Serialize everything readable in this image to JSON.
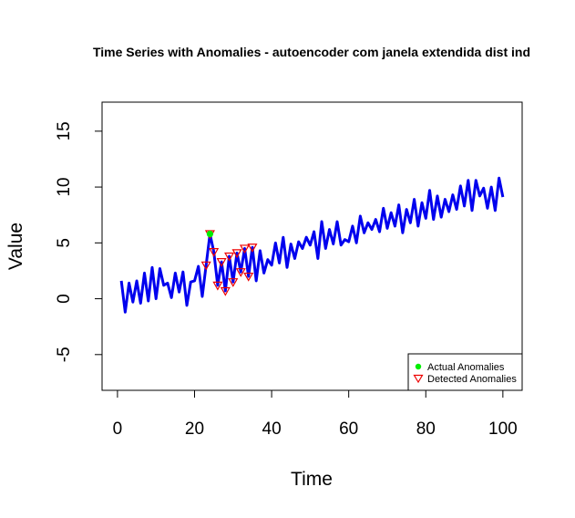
{
  "chart_data": {
    "type": "line",
    "title": "Time Series with Anomalies - autoencoder com janela extendida dist ind",
    "xlabel": "Time",
    "ylabel": "Value",
    "xlim": [
      -4,
      105
    ],
    "ylim": [
      -8.2,
      17.6
    ],
    "xticks": [
      0,
      20,
      40,
      60,
      80,
      100
    ],
    "yticks": [
      -5,
      0,
      5,
      10,
      15
    ],
    "grid": false,
    "legend_position": "bottom-right",
    "colors": {
      "series": "#0000ee",
      "actual": "#00ee00",
      "detected": "#ee0000",
      "axis": "#000000"
    },
    "series": [
      {
        "x": [
          1,
          2,
          3,
          4,
          5,
          6,
          7,
          8,
          9,
          10,
          11,
          12,
          13,
          14,
          15,
          16,
          17,
          18,
          19,
          20,
          21,
          22,
          23,
          24,
          25,
          26,
          27,
          28,
          29,
          30,
          31,
          32,
          33,
          34,
          35,
          36,
          37,
          38,
          39,
          40,
          41,
          42,
          43,
          44,
          45,
          46,
          47,
          48,
          49,
          50,
          51,
          52,
          53,
          54,
          55,
          56,
          57,
          58,
          59,
          60,
          61,
          62,
          63,
          64,
          65,
          66,
          67,
          68,
          69,
          70,
          71,
          72,
          73,
          74,
          75,
          76,
          77,
          78,
          79,
          80,
          81,
          82,
          83,
          84,
          85,
          86,
          87,
          88,
          89,
          90,
          91,
          92,
          93,
          94,
          95,
          96,
          97,
          98,
          99,
          100
        ],
        "values": [
          1.6,
          -1.2,
          1.4,
          -0.3,
          1.6,
          -0.4,
          2.3,
          -0.2,
          2.8,
          0.0,
          2.7,
          1.2,
          1.4,
          0.1,
          2.3,
          0.6,
          2.4,
          -0.6,
          1.5,
          1.6,
          2.9,
          0.2,
          3.0,
          5.8,
          4.2,
          1.2,
          3.3,
          0.7,
          3.8,
          1.5,
          4.1,
          2.4,
          4.5,
          2.0,
          4.6,
          1.6,
          4.3,
          2.3,
          3.5,
          3.0,
          5.0,
          3.2,
          5.5,
          2.8,
          4.9,
          3.6,
          5.1,
          4.5,
          5.5,
          4.8,
          6.0,
          3.6,
          6.9,
          4.5,
          6.2,
          4.9,
          6.9,
          4.8,
          5.3,
          5.1,
          6.5,
          5.0,
          7.4,
          5.9,
          6.8,
          6.2,
          7.1,
          6.0,
          8.1,
          6.3,
          7.7,
          6.5,
          8.4,
          5.9,
          8.0,
          6.8,
          8.9,
          6.5,
          8.6,
          7.2,
          9.7,
          7.1,
          9.2,
          7.3,
          8.9,
          7.8,
          9.3,
          8.0,
          10.1,
          8.3,
          10.6,
          7.9,
          10.6,
          9.2,
          9.9,
          8.1,
          10.0,
          7.9,
          10.8,
          9.1
        ]
      }
    ],
    "actual_anomalies": [
      {
        "x": 24,
        "y": 5.8
      }
    ],
    "detected_anomalies": [
      {
        "x": 23,
        "y": 3.0
      },
      {
        "x": 24,
        "y": 5.8
      },
      {
        "x": 25,
        "y": 4.2
      },
      {
        "x": 26,
        "y": 1.2
      },
      {
        "x": 27,
        "y": 3.3
      },
      {
        "x": 28,
        "y": 0.7
      },
      {
        "x": 29,
        "y": 3.8
      },
      {
        "x": 30,
        "y": 1.5
      },
      {
        "x": 31,
        "y": 4.1
      },
      {
        "x": 32,
        "y": 2.4
      },
      {
        "x": 33,
        "y": 4.5
      },
      {
        "x": 34,
        "y": 2.0
      },
      {
        "x": 35,
        "y": 4.6
      }
    ],
    "legend": [
      {
        "label": "Actual Anomalies",
        "marker": "dot"
      },
      {
        "label": "Detected Anomalies",
        "marker": "triangle-down"
      }
    ]
  }
}
